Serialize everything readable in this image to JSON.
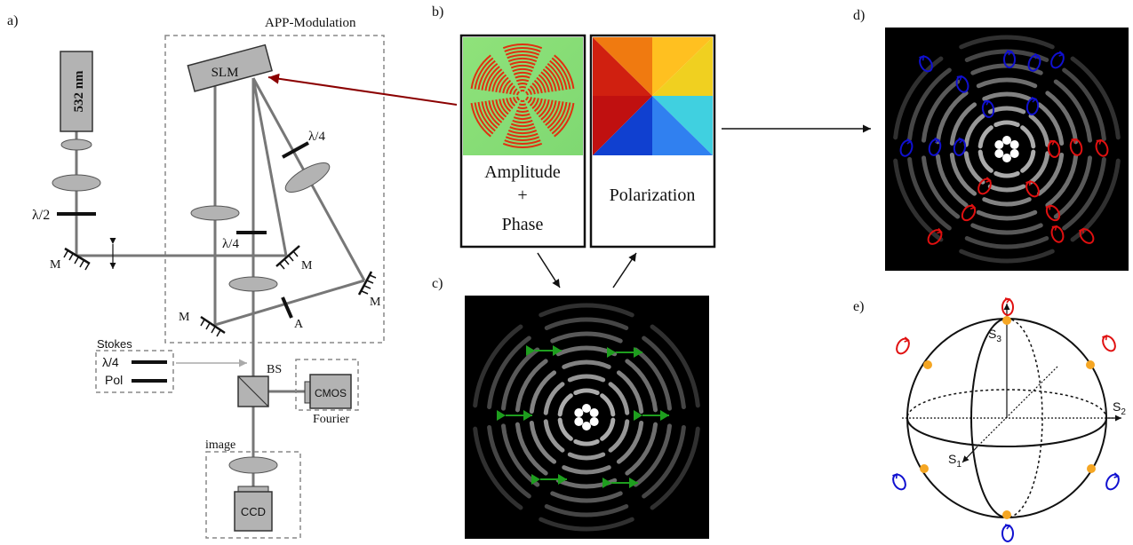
{
  "panel_labels": {
    "a": "a)",
    "b": "b)",
    "c": "c)",
    "d": "d)",
    "e": "e)"
  },
  "setup": {
    "laser_label": "532 nm",
    "app_box_label": "APP-Modulation",
    "slm_label": "SLM",
    "half_wave_label": "λ/2",
    "quarter_wave_label": "λ/4",
    "mirror_label": "M",
    "analyzer_label": "A",
    "beamsplitter_label": "BS",
    "stokes_label": "Stokes",
    "stokes_qwp_label": "λ/4",
    "stokes_pol_label": "Pol",
    "cmos_label": "CMOS",
    "fourier_label": "Fourier",
    "image_label": "image",
    "ccd_label": "CCD"
  },
  "holograms": {
    "amplitude_line1": "Amplitude",
    "amplitude_plus": "+",
    "amplitude_line2": "Phase",
    "polarization_label": "Polarization"
  },
  "poincare": {
    "s1_label": "S",
    "s1_sub": "1",
    "s2_label": "S",
    "s2_sub": "2",
    "s3_label": "S",
    "s3_sub": "3"
  },
  "colors": {
    "beam": "#777777",
    "element_fill": "#b3b3b3",
    "arrow_red": "#8b0000",
    "green_arrow": "#1e9e1e",
    "right_circ": "#e01010",
    "left_circ": "#1010d0",
    "sphere_dot": "#f5a623"
  }
}
